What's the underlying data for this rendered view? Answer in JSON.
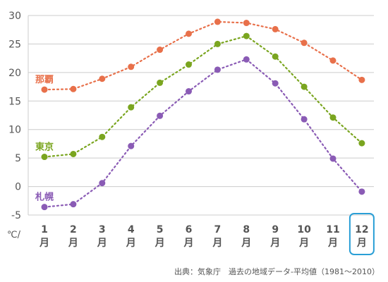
{
  "chart_data": {
    "type": "line",
    "title": "",
    "xlabel": "",
    "ylabel": "",
    "y_unit": "℃/",
    "ylim": [
      -5,
      30
    ],
    "yticks": [
      30,
      25,
      20,
      15,
      10,
      5,
      0,
      -5
    ],
    "grid": true,
    "categories": [
      {
        "num": "1",
        "unit": "月"
      },
      {
        "num": "2",
        "unit": "月"
      },
      {
        "num": "3",
        "unit": "月"
      },
      {
        "num": "4",
        "unit": "月"
      },
      {
        "num": "5",
        "unit": "月"
      },
      {
        "num": "6",
        "unit": "月"
      },
      {
        "num": "7",
        "unit": "月"
      },
      {
        "num": "8",
        "unit": "月"
      },
      {
        "num": "9",
        "unit": "月"
      },
      {
        "num": "10",
        "unit": "月"
      },
      {
        "num": "11",
        "unit": "月"
      },
      {
        "num": "12",
        "unit": "月"
      }
    ],
    "highlighted_category": "12",
    "series": [
      {
        "name": "那覇",
        "color": "#e8704a",
        "values": [
          17.0,
          17.1,
          18.9,
          21.0,
          24.0,
          26.8,
          28.9,
          28.7,
          27.6,
          25.2,
          22.1,
          18.7
        ]
      },
      {
        "name": "東京",
        "color": "#7aa51f",
        "values": [
          5.2,
          5.7,
          8.7,
          13.9,
          18.2,
          21.4,
          25.0,
          26.4,
          22.8,
          17.5,
          12.1,
          7.6
        ]
      },
      {
        "name": "札幌",
        "color": "#8a5bb5",
        "values": [
          -3.6,
          -3.1,
          0.6,
          7.1,
          12.4,
          16.7,
          20.5,
          22.3,
          18.1,
          11.8,
          4.9,
          -0.9
        ]
      }
    ],
    "source": "出典：気象庁　過去の地域データ-平均値（1981～2010）"
  },
  "colors": {
    "grid": "#cccccc",
    "highlight": "#2a9fd6",
    "text": "#555555"
  }
}
